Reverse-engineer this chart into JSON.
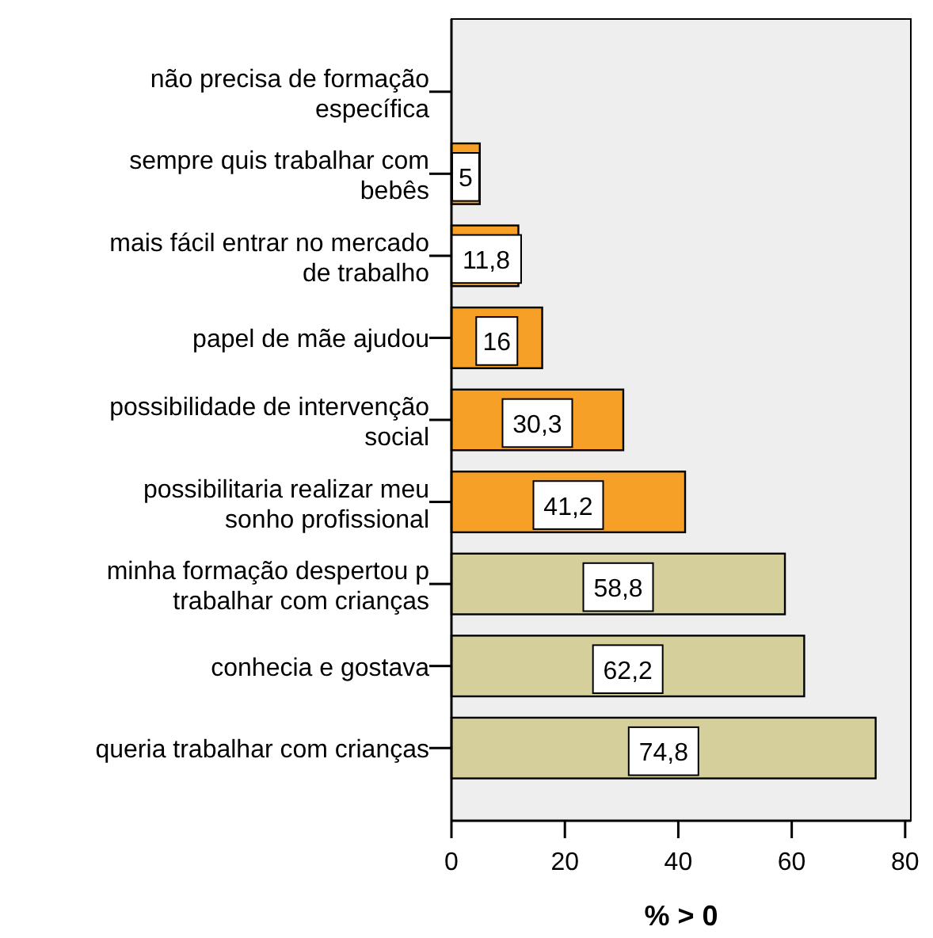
{
  "chart_data": {
    "type": "bar",
    "orientation": "horizontal",
    "xlabel": "% > 0",
    "categories": [
      "não precisa de formação\nespecífica",
      "sempre quis trabalhar com\nbebês",
      "mais fácil entrar no mercado\nde trabalho",
      "papel de mãe ajudou",
      "possibilidade de intervenção\nsocial",
      "possibilitaria realizar meu\nsonho profissional",
      "minha formação despertou p\ntrabalhar com crianças",
      "conhecia e gostava",
      "queria trabalhar com crianças"
    ],
    "values": [
      0,
      5,
      11.8,
      16,
      30.3,
      41.2,
      58.8,
      62.2,
      74.8
    ],
    "colors": [
      "#f7a028",
      "#f7a028",
      "#f7a028",
      "#f7a028",
      "#f7a028",
      "#f7a028",
      "#d4cf9b",
      "#d4cf9b",
      "#d4cf9b"
    ],
    "value_labels": [
      null,
      "5",
      "11,8",
      "16",
      "30,3",
      "41,2",
      "58,8",
      "62,2",
      "74,8"
    ],
    "xlim": [
      0,
      81
    ],
    "xticks": [
      0,
      20,
      40,
      60,
      80
    ],
    "grid": false
  }
}
